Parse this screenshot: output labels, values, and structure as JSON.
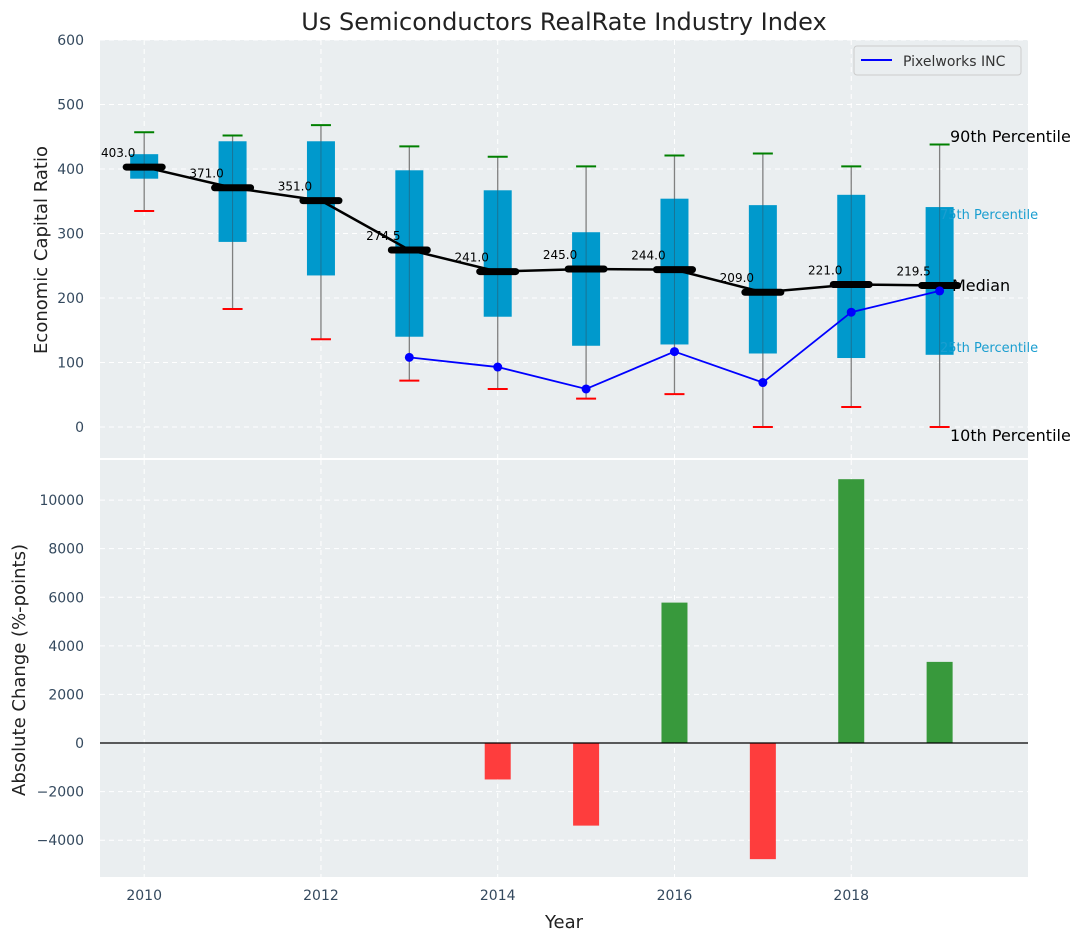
{
  "chart_data": [
    {
      "type": "box",
      "title": "Us Semiconductors RealRate Industry Index",
      "xlabel": "",
      "ylabel": "Economic Capital Ratio",
      "ylim": [
        -48,
        600
      ],
      "xlim": [
        2009.5,
        2020.0
      ],
      "yticks": [
        0,
        100,
        200,
        300,
        400,
        500,
        600
      ],
      "grid": true,
      "legend": {
        "placement": "top-right",
        "entries": [
          "Pixelworks INC"
        ]
      },
      "years": [
        2010,
        2011,
        2012,
        2013,
        2014,
        2015,
        2016,
        2017,
        2018,
        2019
      ],
      "p90": [
        457,
        452,
        468,
        435,
        419,
        404,
        421,
        424,
        404,
        438
      ],
      "p75": [
        423,
        443,
        443,
        398,
        367,
        302,
        354,
        344,
        360,
        341
      ],
      "median": [
        403.0,
        371.0,
        351.0,
        274.5,
        241.0,
        245.0,
        244.0,
        209.0,
        221.0,
        219.5
      ],
      "median_labels": [
        "403.0",
        "371.0",
        "351.0",
        "274.5",
        "241.0",
        "245.0",
        "244.0",
        "209.0",
        "221.0",
        "219.5"
      ],
      "p25": [
        385,
        287,
        235,
        140,
        171,
        126,
        128,
        114,
        107,
        112
      ],
      "p10": [
        335,
        183,
        136,
        72,
        59,
        44,
        51,
        0,
        31,
        0
      ],
      "series": [
        {
          "name": "Pixelworks INC",
          "x": [
            2013,
            2014,
            2015,
            2016,
            2017,
            2018,
            2019
          ],
          "values": [
            108,
            93,
            59,
            117,
            69,
            178,
            211
          ]
        }
      ],
      "annotations": [
        "90th Percentile",
        "75th Percentile",
        "Median",
        "25th Percentile",
        "10th Percentile"
      ],
      "colors": {
        "box": "#0099cc",
        "median": "#000000",
        "p90_cap": "#008000",
        "p10_cap": "#ff0000",
        "series": "#0000ff",
        "whisker": "#808080",
        "annot_small": "#1a9ed0"
      }
    },
    {
      "type": "bar",
      "title": "",
      "xlabel": "Year",
      "ylabel": "Absolute Change (%-points)",
      "ylim": [
        -5515,
        11650
      ],
      "xlim": [
        2009.5,
        2020.0
      ],
      "yticks": [
        -4000,
        -2000,
        0,
        2000,
        4000,
        6000,
        8000,
        10000
      ],
      "ytick_labels": [
        "−4000",
        "−2000",
        "0",
        "2000",
        "4000",
        "6000",
        "8000",
        "10000"
      ],
      "xticks": [
        2010,
        2012,
        2014,
        2016,
        2018
      ],
      "grid": true,
      "categories": [
        2014,
        2015,
        2016,
        2017,
        2018,
        2019
      ],
      "values": [
        -1500,
        -3400,
        5780,
        -4780,
        10860,
        3340
      ],
      "colors": {
        "positive": "#2e9432",
        "negative": "#ff3333",
        "zero_line": "#000000"
      }
    }
  ]
}
